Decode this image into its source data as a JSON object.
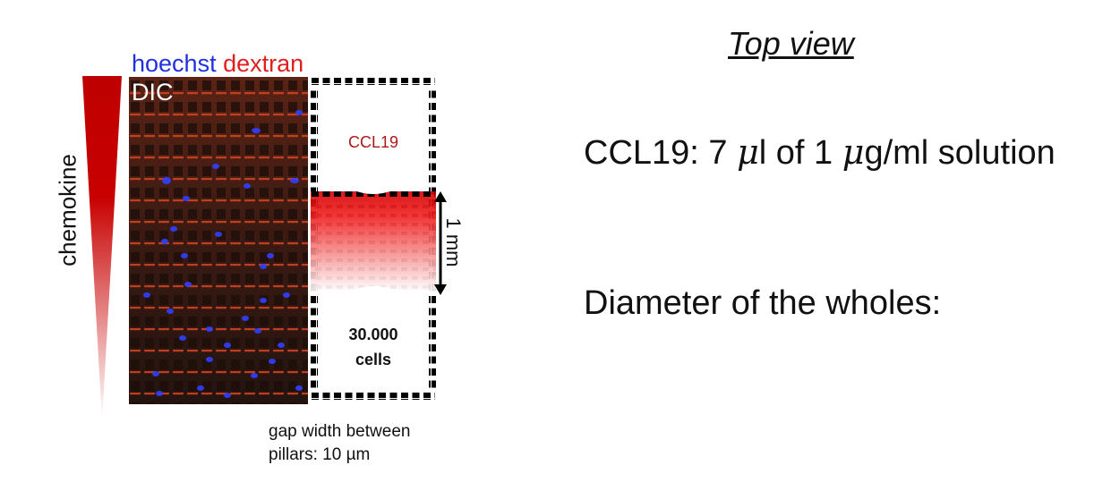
{
  "legend": {
    "hoechst": "hoechst",
    "dextran": "dextran",
    "dic": "DIC"
  },
  "colors": {
    "hoechst": "#2030e0",
    "dextran": "#e02020",
    "ccl19_text": "#b01818",
    "gradient_red": "#d40000",
    "wedge_red": "#bf0000"
  },
  "gradient_label": "chemokine",
  "device": {
    "top_well_label": "CCL19",
    "bottom_well_line1": "30.000",
    "bottom_well_line2": "cells",
    "scale_label": "1 mm"
  },
  "gap_note": {
    "line1": "gap width between",
    "line2": "pillars: 10 µm"
  },
  "right": {
    "title": "Top view",
    "ccl19_prefix": "CCL19: 7 ",
    "mu1": "μ",
    "ccl19_mid": "l of 1 ",
    "mu2": "μ",
    "ccl19_suffix": "g/ml solution",
    "diameter": "Diameter of the wholes:"
  }
}
